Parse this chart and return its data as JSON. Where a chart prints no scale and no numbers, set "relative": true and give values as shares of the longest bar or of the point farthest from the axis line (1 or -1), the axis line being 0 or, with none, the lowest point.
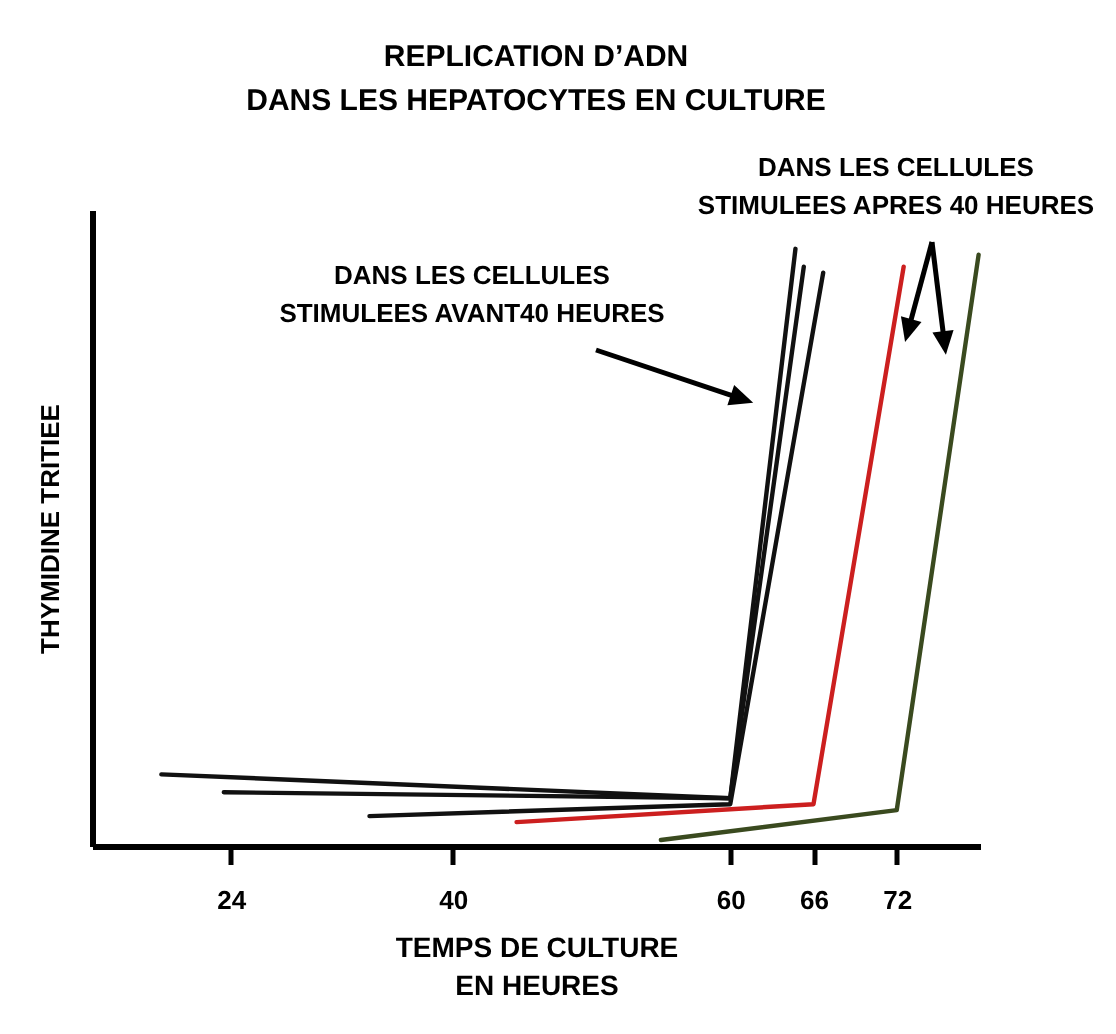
{
  "chart_data": {
    "type": "line",
    "title": "REPLICATION D’ADN\nDANS LES HEPATOCYTES EN CULTURE",
    "xlabel": "TEMPS DE CULTURE\nEN HEURES",
    "ylabel": "THYMIDINE TRITIEE",
    "relative": true,
    "tick_labels": "x",
    "xlim": [
      14,
      78
    ],
    "xticks": [
      24,
      40,
      60,
      66,
      72
    ],
    "series": [
      {
        "color": "#111111",
        "x": [
          19,
          60,
          64.7
        ],
        "values": [
          0.12,
          0.08,
          1
        ]
      },
      {
        "color": "#111111",
        "x": [
          23.5,
          60,
          65.3
        ],
        "values": [
          0.09,
          0.08,
          0.97
        ]
      },
      {
        "color": "#111111",
        "x": [
          34,
          60,
          66.7
        ],
        "values": [
          0.05,
          0.07,
          0.96
        ]
      },
      {
        "color": "#cc1f1f",
        "x": [
          44.6,
          66,
          72.5
        ],
        "values": [
          0.04,
          0.07,
          0.97
        ]
      },
      {
        "color": "#3a4a1f",
        "x": [
          55,
          72,
          77.9
        ],
        "values": [
          0.01,
          0.06,
          0.99
        ]
      }
    ],
    "annotations": [
      "DANS LES CELLULES\nSTIMULEES AVANT40 HEURES",
      "DANS LES CELLULES\nSTIMULEES APRES 40 HEURES"
    ]
  }
}
